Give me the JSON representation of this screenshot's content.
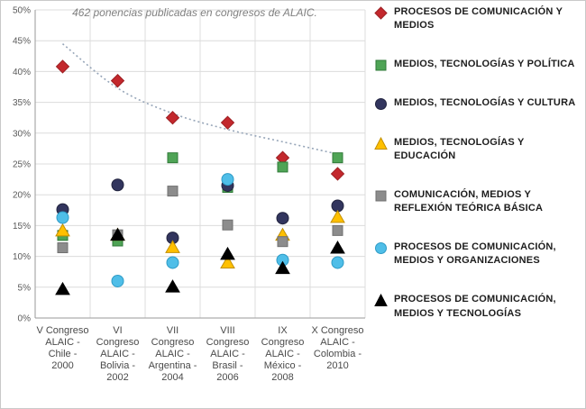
{
  "annotation": "462 ponencias publicadas en congresos de ALAIC.",
  "chart_data": {
    "type": "scatter",
    "title": "",
    "xlabel": "",
    "ylabel": "",
    "ylim": [
      0,
      50
    ],
    "y_ticks": [
      "0%",
      "5%",
      "10%",
      "15%",
      "20%",
      "25%",
      "30%",
      "35%",
      "40%",
      "45%",
      "50%"
    ],
    "grid": true,
    "legend_position": "right",
    "categories": [
      "V Congreso ALAIC - Chile - 2000",
      "VI Congreso ALAIC - Bolivia - 2002",
      "VII Congreso ALAIC - Argentina - 2004",
      "VIII Congreso ALAIC - Brasil - 2006",
      "IX Congreso ALAIC - México - 2008",
      "X Congreso ALAIC - Colombia - 2010"
    ],
    "category_lines": [
      [
        "V Congreso",
        "ALAIC -",
        "Chile -",
        "2000"
      ],
      [
        "VI",
        "Congreso",
        "ALAIC -",
        "Bolivia -",
        "2002"
      ],
      [
        "VII",
        "Congreso",
        "ALAIC -",
        "Argentina -",
        "2004"
      ],
      [
        "VIII",
        "Congreso",
        "ALAIC -",
        "Brasil -",
        "2006"
      ],
      [
        "IX",
        "Congreso",
        "ALAIC -",
        "México -",
        "2008"
      ],
      [
        "X Congreso",
        "ALAIC -",
        "Colombia -",
        "2010"
      ]
    ],
    "series": [
      {
        "name": "PROCESOS DE COMUNICACIÓN Y MEDIOS",
        "marker": "diamond",
        "color": "#c3282d",
        "stroke": "#9c1f22",
        "values": [
          40.8,
          38.5,
          32.5,
          31.7,
          26.0,
          23.4
        ]
      },
      {
        "name": "MEDIOS, TECNOLOGÍAS Y POLÍTICA",
        "marker": "square",
        "color": "#4fa456",
        "stroke": "#2f7a38",
        "values": [
          13.4,
          12.5,
          26.0,
          21.2,
          24.5,
          26.0
        ]
      },
      {
        "name": "MEDIOS, TECNOLOGÍAS Y CULTURA",
        "marker": "circle",
        "color": "#32355e",
        "stroke": "#22243f",
        "values": [
          17.6,
          21.6,
          13.0,
          21.5,
          16.2,
          18.2
        ]
      },
      {
        "name": "MEDIOS, TECNOLOGÍAS Y EDUCACIÓN",
        "marker": "triangle",
        "color": "#ffc000",
        "stroke": "#c28f00",
        "values": [
          14.2,
          13.5,
          11.5,
          9.0,
          13.5,
          16.4
        ]
      },
      {
        "name": "COMUNICACIÓN, MEDIOS Y REFLEXIÓN TEÓRICA BÁSICA",
        "marker": "square",
        "color": "#8c8c8c",
        "stroke": "#707070",
        "values": [
          11.4,
          13.5,
          20.6,
          15.1,
          12.4,
          14.2
        ]
      },
      {
        "name": "PROCESOS DE COMUNICACIÓN, MEDIOS Y ORGANIZACIONES",
        "marker": "circle",
        "color": "#4fbee8",
        "stroke": "#2e9bc6",
        "values": [
          16.3,
          6.0,
          9.0,
          22.5,
          9.4,
          9.0
        ]
      },
      {
        "name": "PROCESOS DE COMUNICACIÓN, MEDIOS Y TECNOLOGÍAS",
        "marker": "triangle",
        "color": "#000000",
        "stroke": "#000000",
        "values": [
          4.7,
          13.5,
          5.1,
          10.4,
          8.1,
          11.4
        ]
      }
    ],
    "trendline": {
      "style": "dotted",
      "color": "#96a5b8",
      "values": [
        44.5,
        37.3,
        33.2,
        30.6,
        28.6,
        26.6
      ]
    }
  }
}
